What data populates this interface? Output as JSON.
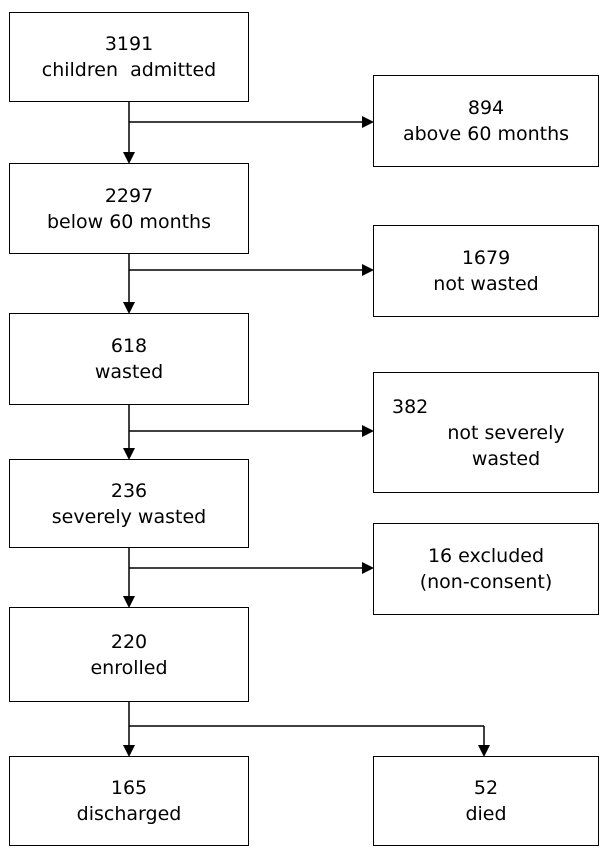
{
  "flowchart": {
    "admitted": {
      "count": "3191",
      "label": "children  admitted"
    },
    "above60": {
      "count": "894",
      "label": "above 60 months"
    },
    "below60": {
      "count": "2297",
      "label": "below 60 months"
    },
    "not_wasted": {
      "count": "1679",
      "label": "not wasted"
    },
    "wasted": {
      "count": "618",
      "label": "wasted"
    },
    "not_severely": {
      "count": "382",
      "label_line1": "not severely",
      "label_line2": "wasted"
    },
    "severely": {
      "count": "236",
      "label": "severely wasted"
    },
    "excluded": {
      "line1": "16 excluded",
      "line2": "(non-consent)"
    },
    "enrolled": {
      "count": "220",
      "label": "enrolled"
    },
    "discharged": {
      "count": "165",
      "label": "discharged"
    },
    "died": {
      "count": "52",
      "label": "died"
    }
  }
}
